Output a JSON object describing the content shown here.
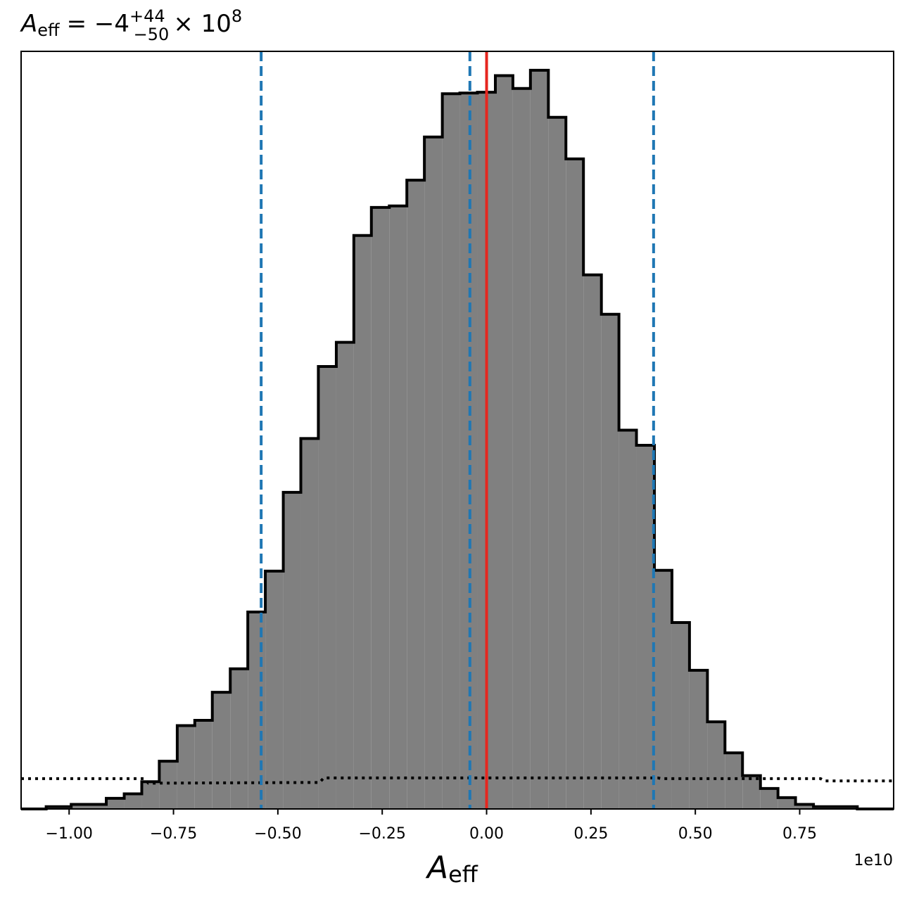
{
  "chart_data": {
    "type": "histogram",
    "title": {
      "symbol": "A",
      "subscript": "eff",
      "equals": "= −4",
      "sup": "+44",
      "sub": "−50",
      "times": "× 10",
      "power": "8"
    },
    "xlabel": {
      "symbol": "A",
      "subscript": "eff"
    },
    "offset_label": "1e10",
    "xlim": [
      -1.115,
      0.975
    ],
    "ylim": [
      0,
      1.0
    ],
    "grid": false,
    "x_ticks": [
      {
        "value": -1.0,
        "label": "−1.00"
      },
      {
        "value": -0.75,
        "label": "−0.75"
      },
      {
        "value": -0.5,
        "label": "−0.50"
      },
      {
        "value": -0.25,
        "label": "−0.25"
      },
      {
        "value": 0.0,
        "label": "0.00"
      },
      {
        "value": 0.25,
        "label": "0.25"
      },
      {
        "value": 0.5,
        "label": "0.50"
      },
      {
        "value": 0.75,
        "label": "0.75"
      }
    ],
    "bin_edges": [
      -1.115,
      -1.055,
      -0.995,
      -0.911,
      -0.868,
      -0.826,
      -0.784,
      -0.741,
      -0.699,
      -0.657,
      -0.614,
      -0.572,
      -0.53,
      -0.487,
      -0.445,
      -0.403,
      -0.36,
      -0.318,
      -0.276,
      -0.233,
      -0.191,
      -0.149,
      -0.106,
      -0.064,
      -0.022,
      0.021,
      0.063,
      0.105,
      0.148,
      0.19,
      0.232,
      0.275,
      0.317,
      0.359,
      0.402,
      0.444,
      0.486,
      0.529,
      0.571,
      0.613,
      0.656,
      0.698,
      0.74,
      0.783,
      0.888,
      0.975
    ],
    "bin_heights": [
      0.0,
      0.003,
      0.006,
      0.014,
      0.02,
      0.036,
      0.063,
      0.11,
      0.117,
      0.154,
      0.185,
      0.26,
      0.314,
      0.418,
      0.489,
      0.584,
      0.616,
      0.757,
      0.794,
      0.796,
      0.83,
      0.887,
      0.944,
      0.945,
      0.946,
      0.968,
      0.951,
      0.975,
      0.913,
      0.858,
      0.705,
      0.653,
      0.5,
      0.48,
      0.315,
      0.246,
      0.183,
      0.115,
      0.074,
      0.044,
      0.027,
      0.015,
      0.006,
      0.003,
      0.0
    ],
    "median": 0.0,
    "quantile_lines": [
      -0.54,
      -0.04,
      0.4
    ],
    "prior": {
      "x": [
        -1.115,
        -0.82,
        -0.81,
        -0.4,
        -0.39,
        0.41,
        0.42,
        0.8,
        0.81,
        0.975
      ],
      "y": [
        0.04,
        0.04,
        0.034,
        0.035,
        0.041,
        0.041,
        0.04,
        0.04,
        0.037,
        0.037
      ]
    },
    "colors": {
      "fill": "#808080",
      "outline": "#000000",
      "median": "#e6261f",
      "quantile": "#1f77b4",
      "prior": "#000000"
    }
  }
}
